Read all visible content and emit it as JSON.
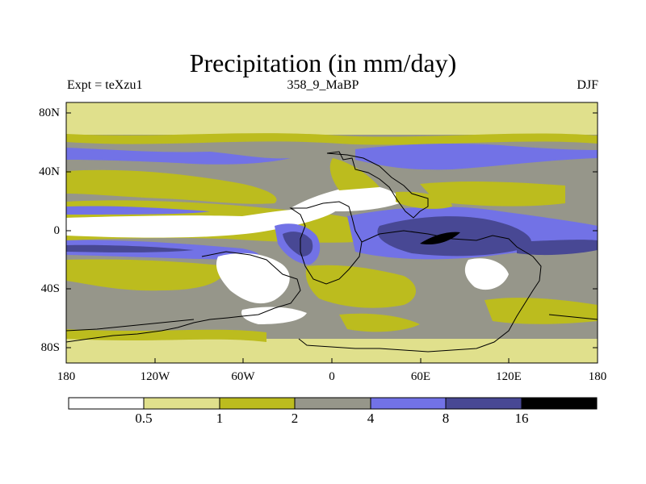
{
  "figure": {
    "title": "Precipitation (in mm/day)",
    "experiment_label": "Expt = teXzu1",
    "period_label": "358_9_MaBP",
    "season_label": "DJF"
  },
  "axes": {
    "y_ticks": [
      "80N",
      "40N",
      "0",
      "40S",
      "80S"
    ],
    "x_ticks": [
      "180",
      "120W",
      "60W",
      "0",
      "60E",
      "120E",
      "180"
    ]
  },
  "colorbar": {
    "labels": [
      "0.5",
      "1",
      "2",
      "4",
      "8",
      "16"
    ],
    "colors": [
      "#ffffff",
      "#e0e08c",
      "#bcbc1e",
      "#96968a",
      "#7272e6",
      "#484894",
      "#000000"
    ]
  },
  "map_colors": {
    "white": "#ffffff",
    "pale": "#e0e08c",
    "olive": "#bcbc1e",
    "gray": "#96968a",
    "blue": "#7272e6",
    "navy": "#484894",
    "black": "#000000"
  }
}
